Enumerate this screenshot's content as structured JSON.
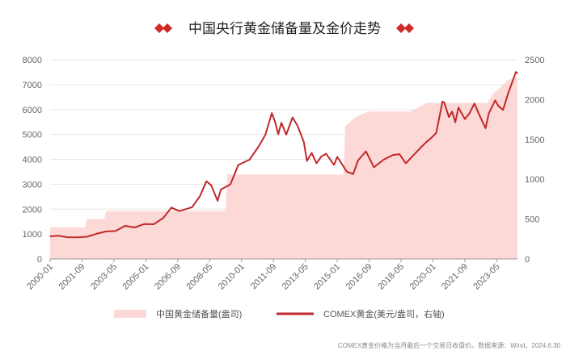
{
  "chart_data": {
    "type": "area+line",
    "title": "中国央行黄金储备量及金价走势",
    "source_note": "COMEX黄金价格为当月最后一个交易日收盘价。数据来源：Wind，2024.6.30",
    "x_tick_labels": [
      "2000-01",
      "2001-09",
      "2003-05",
      "2005-01",
      "2006-09",
      "2008-05",
      "2010-01",
      "2011-09",
      "2013-05",
      "2015-01",
      "2016-09",
      "2018-05",
      "2020-01",
      "2021-09",
      "2023-05"
    ],
    "left_axis": {
      "ylim": [
        0,
        8000
      ],
      "ticks": [
        "0",
        "1000",
        "2000",
        "3000",
        "4000",
        "5000",
        "6000",
        "7000",
        "8000"
      ]
    },
    "right_axis": {
      "ylim": [
        0,
        2500
      ],
      "ticks": [
        "0",
        "500",
        "1000",
        "1500",
        "2000",
        "2500"
      ]
    },
    "legend": {
      "position": "bottom"
    },
    "colors": {
      "area": "#fcd9d7",
      "line": "#c0282a",
      "grid": "#e6e6e6",
      "axis_text": "#666666",
      "diamond": "#d02a28"
    },
    "series": [
      {
        "name": "中国黄金储备量(盎司)",
        "kind": "area",
        "axis": "left",
        "points": [
          [
            "2000-01",
            1267
          ],
          [
            "2001-11",
            1267
          ],
          [
            "2001-12",
            1608
          ],
          [
            "2002-11",
            1608
          ],
          [
            "2002-12",
            1929
          ],
          [
            "2009-03",
            1929
          ],
          [
            "2009-04",
            3389
          ],
          [
            "2015-05",
            3389
          ],
          [
            "2015-06",
            5331
          ],
          [
            "2015-12",
            5666
          ],
          [
            "2016-06",
            5862
          ],
          [
            "2016-10",
            5924
          ],
          [
            "2018-11",
            5924
          ],
          [
            "2019-06",
            6161
          ],
          [
            "2019-09",
            6264
          ],
          [
            "2022-11",
            6264
          ],
          [
            "2023-03",
            6650
          ],
          [
            "2023-08",
            6925
          ],
          [
            "2023-12",
            7187
          ],
          [
            "2024-04",
            7280
          ],
          [
            "2024-06",
            7280
          ]
        ]
      },
      {
        "name": "COMEX黄金(美元/盎司，右轴)",
        "kind": "line",
        "axis": "right",
        "points": [
          [
            "2000-01",
            283
          ],
          [
            "2000-06",
            290
          ],
          [
            "2000-12",
            272
          ],
          [
            "2001-06",
            270
          ],
          [
            "2001-12",
            278
          ],
          [
            "2002-06",
            315
          ],
          [
            "2002-12",
            345
          ],
          [
            "2003-06",
            350
          ],
          [
            "2003-12",
            415
          ],
          [
            "2004-06",
            395
          ],
          [
            "2004-12",
            438
          ],
          [
            "2005-06",
            435
          ],
          [
            "2005-12",
            515
          ],
          [
            "2006-05",
            645
          ],
          [
            "2006-10",
            600
          ],
          [
            "2007-06",
            650
          ],
          [
            "2007-11",
            790
          ],
          [
            "2008-03",
            975
          ],
          [
            "2008-06",
            925
          ],
          [
            "2008-10",
            730
          ],
          [
            "2008-12",
            870
          ],
          [
            "2009-06",
            935
          ],
          [
            "2009-11",
            1180
          ],
          [
            "2010-06",
            1245
          ],
          [
            "2010-12",
            1420
          ],
          [
            "2011-04",
            1560
          ],
          [
            "2011-08",
            1830
          ],
          [
            "2011-10",
            1720
          ],
          [
            "2011-12",
            1565
          ],
          [
            "2012-02",
            1710
          ],
          [
            "2012-05",
            1560
          ],
          [
            "2012-09",
            1775
          ],
          [
            "2012-12",
            1675
          ],
          [
            "2013-04",
            1470
          ],
          [
            "2013-06",
            1230
          ],
          [
            "2013-09",
            1330
          ],
          [
            "2013-12",
            1200
          ],
          [
            "2014-03",
            1285
          ],
          [
            "2014-06",
            1320
          ],
          [
            "2014-11",
            1180
          ],
          [
            "2015-01",
            1280
          ],
          [
            "2015-07",
            1095
          ],
          [
            "2015-11",
            1065
          ],
          [
            "2016-02",
            1235
          ],
          [
            "2016-07",
            1350
          ],
          [
            "2016-12",
            1150
          ],
          [
            "2017-06",
            1245
          ],
          [
            "2017-12",
            1305
          ],
          [
            "2018-04",
            1315
          ],
          [
            "2018-08",
            1200
          ],
          [
            "2018-12",
            1285
          ],
          [
            "2019-06",
            1410
          ],
          [
            "2019-09",
            1470
          ],
          [
            "2019-12",
            1520
          ],
          [
            "2020-03",
            1580
          ],
          [
            "2020-07",
            1975
          ],
          [
            "2020-08",
            1965
          ],
          [
            "2020-11",
            1780
          ],
          [
            "2021-01",
            1850
          ],
          [
            "2021-03",
            1715
          ],
          [
            "2021-05",
            1900
          ],
          [
            "2021-09",
            1755
          ],
          [
            "2021-12",
            1830
          ],
          [
            "2022-03",
            1950
          ],
          [
            "2022-06",
            1810
          ],
          [
            "2022-10",
            1640
          ],
          [
            "2022-12",
            1825
          ],
          [
            "2023-04",
            1990
          ],
          [
            "2023-06",
            1920
          ],
          [
            "2023-09",
            1870
          ],
          [
            "2023-12",
            2070
          ],
          [
            "2024-03",
            2235
          ],
          [
            "2024-05",
            2345
          ],
          [
            "2024-06",
            2330
          ]
        ]
      }
    ]
  }
}
